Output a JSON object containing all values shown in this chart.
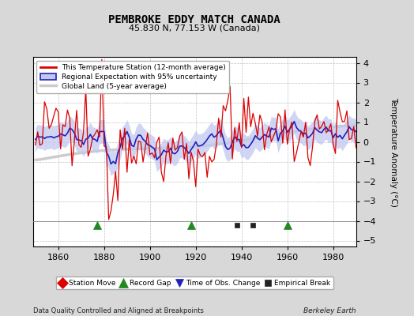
{
  "title": "PEMBROKE EDDY MATCH CANADA",
  "subtitle": "45.830 N, 77.153 W (Canada)",
  "ylabel": "Temperature Anomaly (°C)",
  "xlabel_left": "Data Quality Controlled and Aligned at Breakpoints",
  "xlabel_right": "Berkeley Earth",
  "xlim": [
    1849,
    1990
  ],
  "ylim": [
    -5.3,
    4.3
  ],
  "yticks": [
    -5,
    -4,
    -3,
    -2,
    -1,
    0,
    1,
    2,
    3,
    4
  ],
  "xticks": [
    1860,
    1880,
    1900,
    1920,
    1940,
    1960,
    1980
  ],
  "bg_color": "#d8d8d8",
  "plot_bg_color": "#ffffff",
  "grid_color": "#bbbbbb",
  "station_color": "#dd0000",
  "regional_color": "#2222bb",
  "regional_fill_color": "#c0c8f0",
  "global_color": "#cccccc",
  "global_lw": 2.5,
  "markers": [
    {
      "type": "record_gap",
      "x": 1877,
      "color": "#228822",
      "marker": "^",
      "size": 7
    },
    {
      "type": "record_gap",
      "x": 1918,
      "color": "#228822",
      "marker": "^",
      "size": 7
    },
    {
      "type": "record_gap",
      "x": 1960,
      "color": "#228822",
      "marker": "^",
      "size": 7
    },
    {
      "type": "empirical_break",
      "x": 1938,
      "color": "#222222",
      "marker": "s",
      "size": 5
    },
    {
      "type": "empirical_break",
      "x": 1945,
      "color": "#222222",
      "marker": "s",
      "size": 5
    }
  ],
  "legend_markers": [
    {
      "label": "Station Move",
      "color": "#dd0000",
      "marker": "D",
      "size": 7
    },
    {
      "label": "Record Gap",
      "color": "#228822",
      "marker": "^",
      "size": 8
    },
    {
      "label": "Time of Obs. Change",
      "color": "#2222bb",
      "marker": "v",
      "size": 7
    },
    {
      "label": "Empirical Break",
      "color": "#222222",
      "marker": "s",
      "size": 6
    }
  ],
  "seed": 12345
}
